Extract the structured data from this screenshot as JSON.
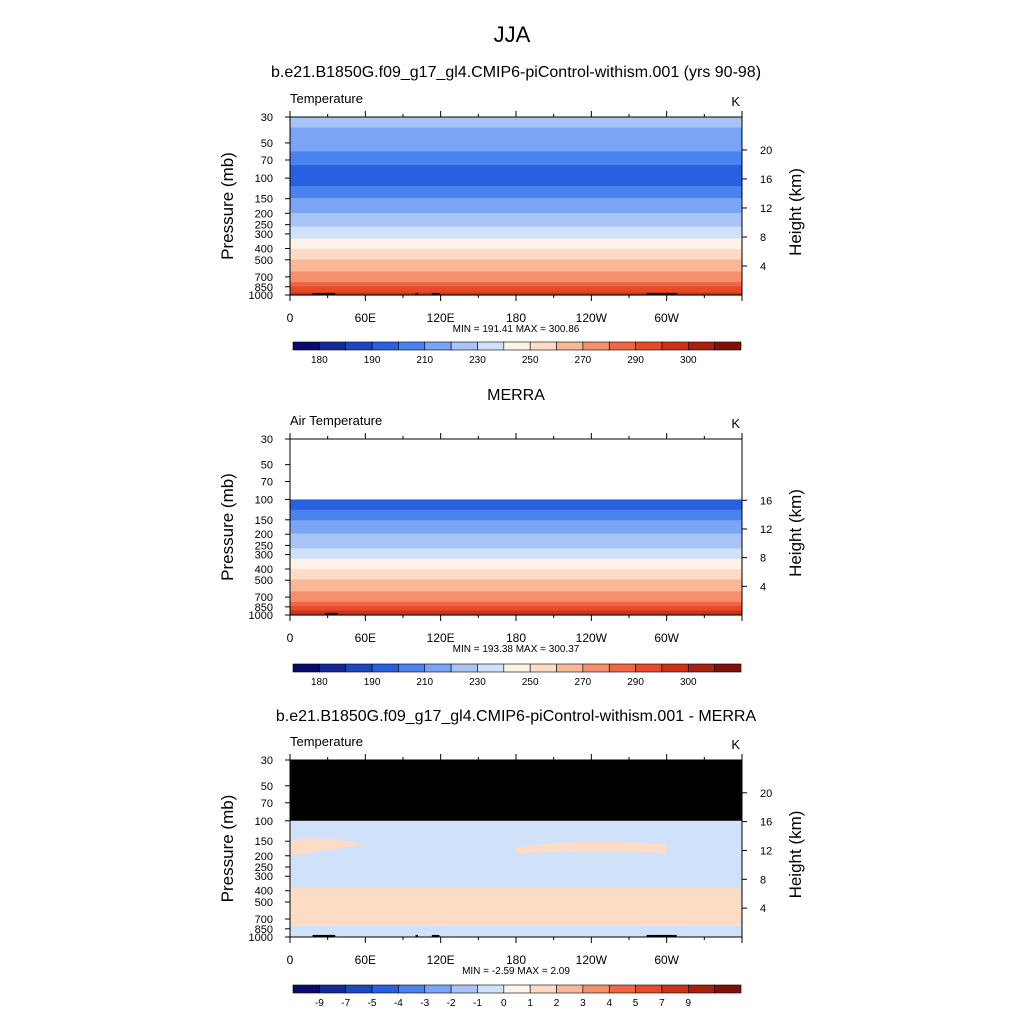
{
  "figure": {
    "season_title": "JJA"
  },
  "chart_data": [
    {
      "type": "heatmap",
      "panel_title": "b.e21.B1850G.f09_g17_gl4.CMIP6-piControl-withism.001 (yrs 90-98)",
      "left_label": "Temperature",
      "units": "K",
      "ylabel": "Pressure (mb)",
      "ylabel_right": "Height (km)",
      "pressure_ticks": [
        "30",
        "50",
        "70",
        "100",
        "150",
        "200",
        "250",
        "300",
        "400",
        "500",
        "700",
        "850",
        "1000"
      ],
      "pressure_values": [
        30,
        50,
        70,
        100,
        150,
        200,
        250,
        300,
        400,
        500,
        700,
        850,
        1000
      ],
      "height_ticks": [
        "4",
        "8",
        "12",
        "16",
        "20"
      ],
      "height_values": [
        4,
        8,
        12,
        16,
        20
      ],
      "lon_ticks": [
        "0",
        "60E",
        "120E",
        "180",
        "120W",
        "60W"
      ],
      "lon_values": [
        0,
        60,
        120,
        180,
        240,
        300
      ],
      "xlim": [
        0,
        360
      ],
      "ylim": [
        1000,
        30
      ],
      "stats": "MIN = 191.41  MAX = 300.86",
      "colorbar": {
        "levels": [
          "180",
          "190",
          "210",
          "230",
          "250",
          "270",
          "290",
          "300"
        ],
        "colors": [
          "#0a0a6e",
          "#142896",
          "#1e46be",
          "#2860e0",
          "#4a82f0",
          "#7aa4f4",
          "#a8c4f6",
          "#cfe2fa",
          "#fff2e6",
          "#fddbc4",
          "#f8b898",
          "#f4906c",
          "#ee6644",
          "#e64a28",
          "#cc3216",
          "#a8200e",
          "#801008"
        ],
        "label_positions": [
          1,
          3,
          5,
          7,
          9,
          11,
          13,
          15
        ]
      },
      "profile": [
        {
          "p": 30,
          "T": 224
        },
        {
          "p": 50,
          "T": 214
        },
        {
          "p": 70,
          "T": 206
        },
        {
          "p": 100,
          "T": 202
        },
        {
          "p": 150,
          "T": 210
        },
        {
          "p": 200,
          "T": 220
        },
        {
          "p": 250,
          "T": 228
        },
        {
          "p": 300,
          "T": 236
        },
        {
          "p": 400,
          "T": 250
        },
        {
          "p": 500,
          "T": 260
        },
        {
          "p": 700,
          "T": 275
        },
        {
          "p": 850,
          "T": 285
        },
        {
          "p": 1000,
          "T": 293
        }
      ],
      "masked_top": 0,
      "topography": [
        [
          18,
          32
        ],
        [
          30,
          36
        ],
        [
          100,
          102
        ],
        [
          113,
          119
        ],
        [
          284,
          308
        ]
      ]
    },
    {
      "type": "heatmap",
      "panel_title": "MERRA",
      "left_label": "Air Temperature",
      "units": "K",
      "ylabel": "Pressure (mb)",
      "ylabel_right": "Height (km)",
      "pressure_ticks": [
        "30",
        "50",
        "70",
        "100",
        "150",
        "200",
        "250",
        "300",
        "400",
        "500",
        "700",
        "850",
        "1000"
      ],
      "pressure_values": [
        30,
        50,
        70,
        100,
        150,
        200,
        250,
        300,
        400,
        500,
        700,
        850,
        1000
      ],
      "height_ticks": [
        "4",
        "8",
        "12",
        "16"
      ],
      "height_values": [
        4,
        8,
        12,
        16
      ],
      "lon_ticks": [
        "0",
        "60E",
        "120E",
        "180",
        "120W",
        "60W"
      ],
      "lon_values": [
        0,
        60,
        120,
        180,
        240,
        300
      ],
      "xlim": [
        0,
        360
      ],
      "ylim": [
        1000,
        30
      ],
      "stats": "MIN = 193.38  MAX = 300.37",
      "colorbar": {
        "levels": [
          "180",
          "190",
          "210",
          "230",
          "250",
          "270",
          "290",
          "300"
        ],
        "colors": [
          "#0a0a6e",
          "#142896",
          "#1e46be",
          "#2860e0",
          "#4a82f0",
          "#7aa4f4",
          "#a8c4f6",
          "#cfe2fa",
          "#fff2e6",
          "#fddbc4",
          "#f8b898",
          "#f4906c",
          "#ee6644",
          "#e64a28",
          "#cc3216",
          "#a8200e",
          "#801008"
        ],
        "label_positions": [
          1,
          3,
          5,
          7,
          9,
          11,
          13,
          15
        ]
      },
      "profile": [
        {
          "p": 100,
          "T": 200
        },
        {
          "p": 150,
          "T": 210
        },
        {
          "p": 200,
          "T": 220
        },
        {
          "p": 250,
          "T": 228
        },
        {
          "p": 300,
          "T": 236
        },
        {
          "p": 400,
          "T": 250
        },
        {
          "p": 500,
          "T": 260
        },
        {
          "p": 700,
          "T": 275
        },
        {
          "p": 850,
          "T": 285
        },
        {
          "p": 1000,
          "T": 294
        }
      ],
      "masked_top": 0,
      "white_above": 100,
      "topography": [
        [
          28,
          38
        ]
      ]
    },
    {
      "type": "heatmap",
      "panel_title": "b.e21.B1850G.f09_g17_gl4.CMIP6-piControl-withism.001 - MERRA",
      "left_label": "Temperature",
      "units": "K",
      "ylabel": "Pressure (mb)",
      "ylabel_right": "Height (km)",
      "pressure_ticks": [
        "30",
        "50",
        "70",
        "100",
        "150",
        "200",
        "250",
        "300",
        "400",
        "500",
        "700",
        "850",
        "1000"
      ],
      "pressure_values": [
        30,
        50,
        70,
        100,
        150,
        200,
        250,
        300,
        400,
        500,
        700,
        850,
        1000
      ],
      "height_ticks": [
        "4",
        "8",
        "12",
        "16",
        "20"
      ],
      "height_values": [
        4,
        8,
        12,
        16,
        20
      ],
      "lon_ticks": [
        "0",
        "60E",
        "120E",
        "180",
        "120W",
        "60W"
      ],
      "lon_values": [
        0,
        60,
        120,
        180,
        240,
        300
      ],
      "xlim": [
        0,
        360
      ],
      "ylim": [
        1000,
        30
      ],
      "stats": "MIN =  -2.59  MAX =   2.09",
      "colorbar": {
        "levels": [
          "-9",
          "-7",
          "-5",
          "-4",
          "-3",
          "-2",
          "-1",
          "0",
          "1",
          "2",
          "3",
          "4",
          "5",
          "7",
          "9"
        ],
        "colors": [
          "#0a0a6e",
          "#142896",
          "#1e46be",
          "#2860e0",
          "#4a82f0",
          "#7aa4f4",
          "#a8c4f6",
          "#cfe2fa",
          "#fff2e6",
          "#fddbc4",
          "#f8b898",
          "#f4906c",
          "#ee6644",
          "#e64a28",
          "#cc3216",
          "#a8200e",
          "#801008"
        ],
        "label_positions": [
          1,
          2,
          3,
          4,
          5,
          6,
          7,
          8,
          9,
          10,
          11,
          12,
          13,
          14,
          15
        ]
      },
      "difference_bands": [
        {
          "p_top": 100,
          "p_bot": 115,
          "T": -1.5
        },
        {
          "p_top": 115,
          "p_bot": 380,
          "T": -0.5
        },
        {
          "p_top": 380,
          "p_bot": 800,
          "T": 0.5
        },
        {
          "p_top": 800,
          "p_bot": 1000,
          "T": -0.5
        }
      ],
      "masked_top": 100,
      "topography": [
        [
          18,
          32
        ],
        [
          30,
          36
        ],
        [
          100,
          102
        ],
        [
          113,
          119
        ],
        [
          284,
          308
        ]
      ]
    }
  ]
}
